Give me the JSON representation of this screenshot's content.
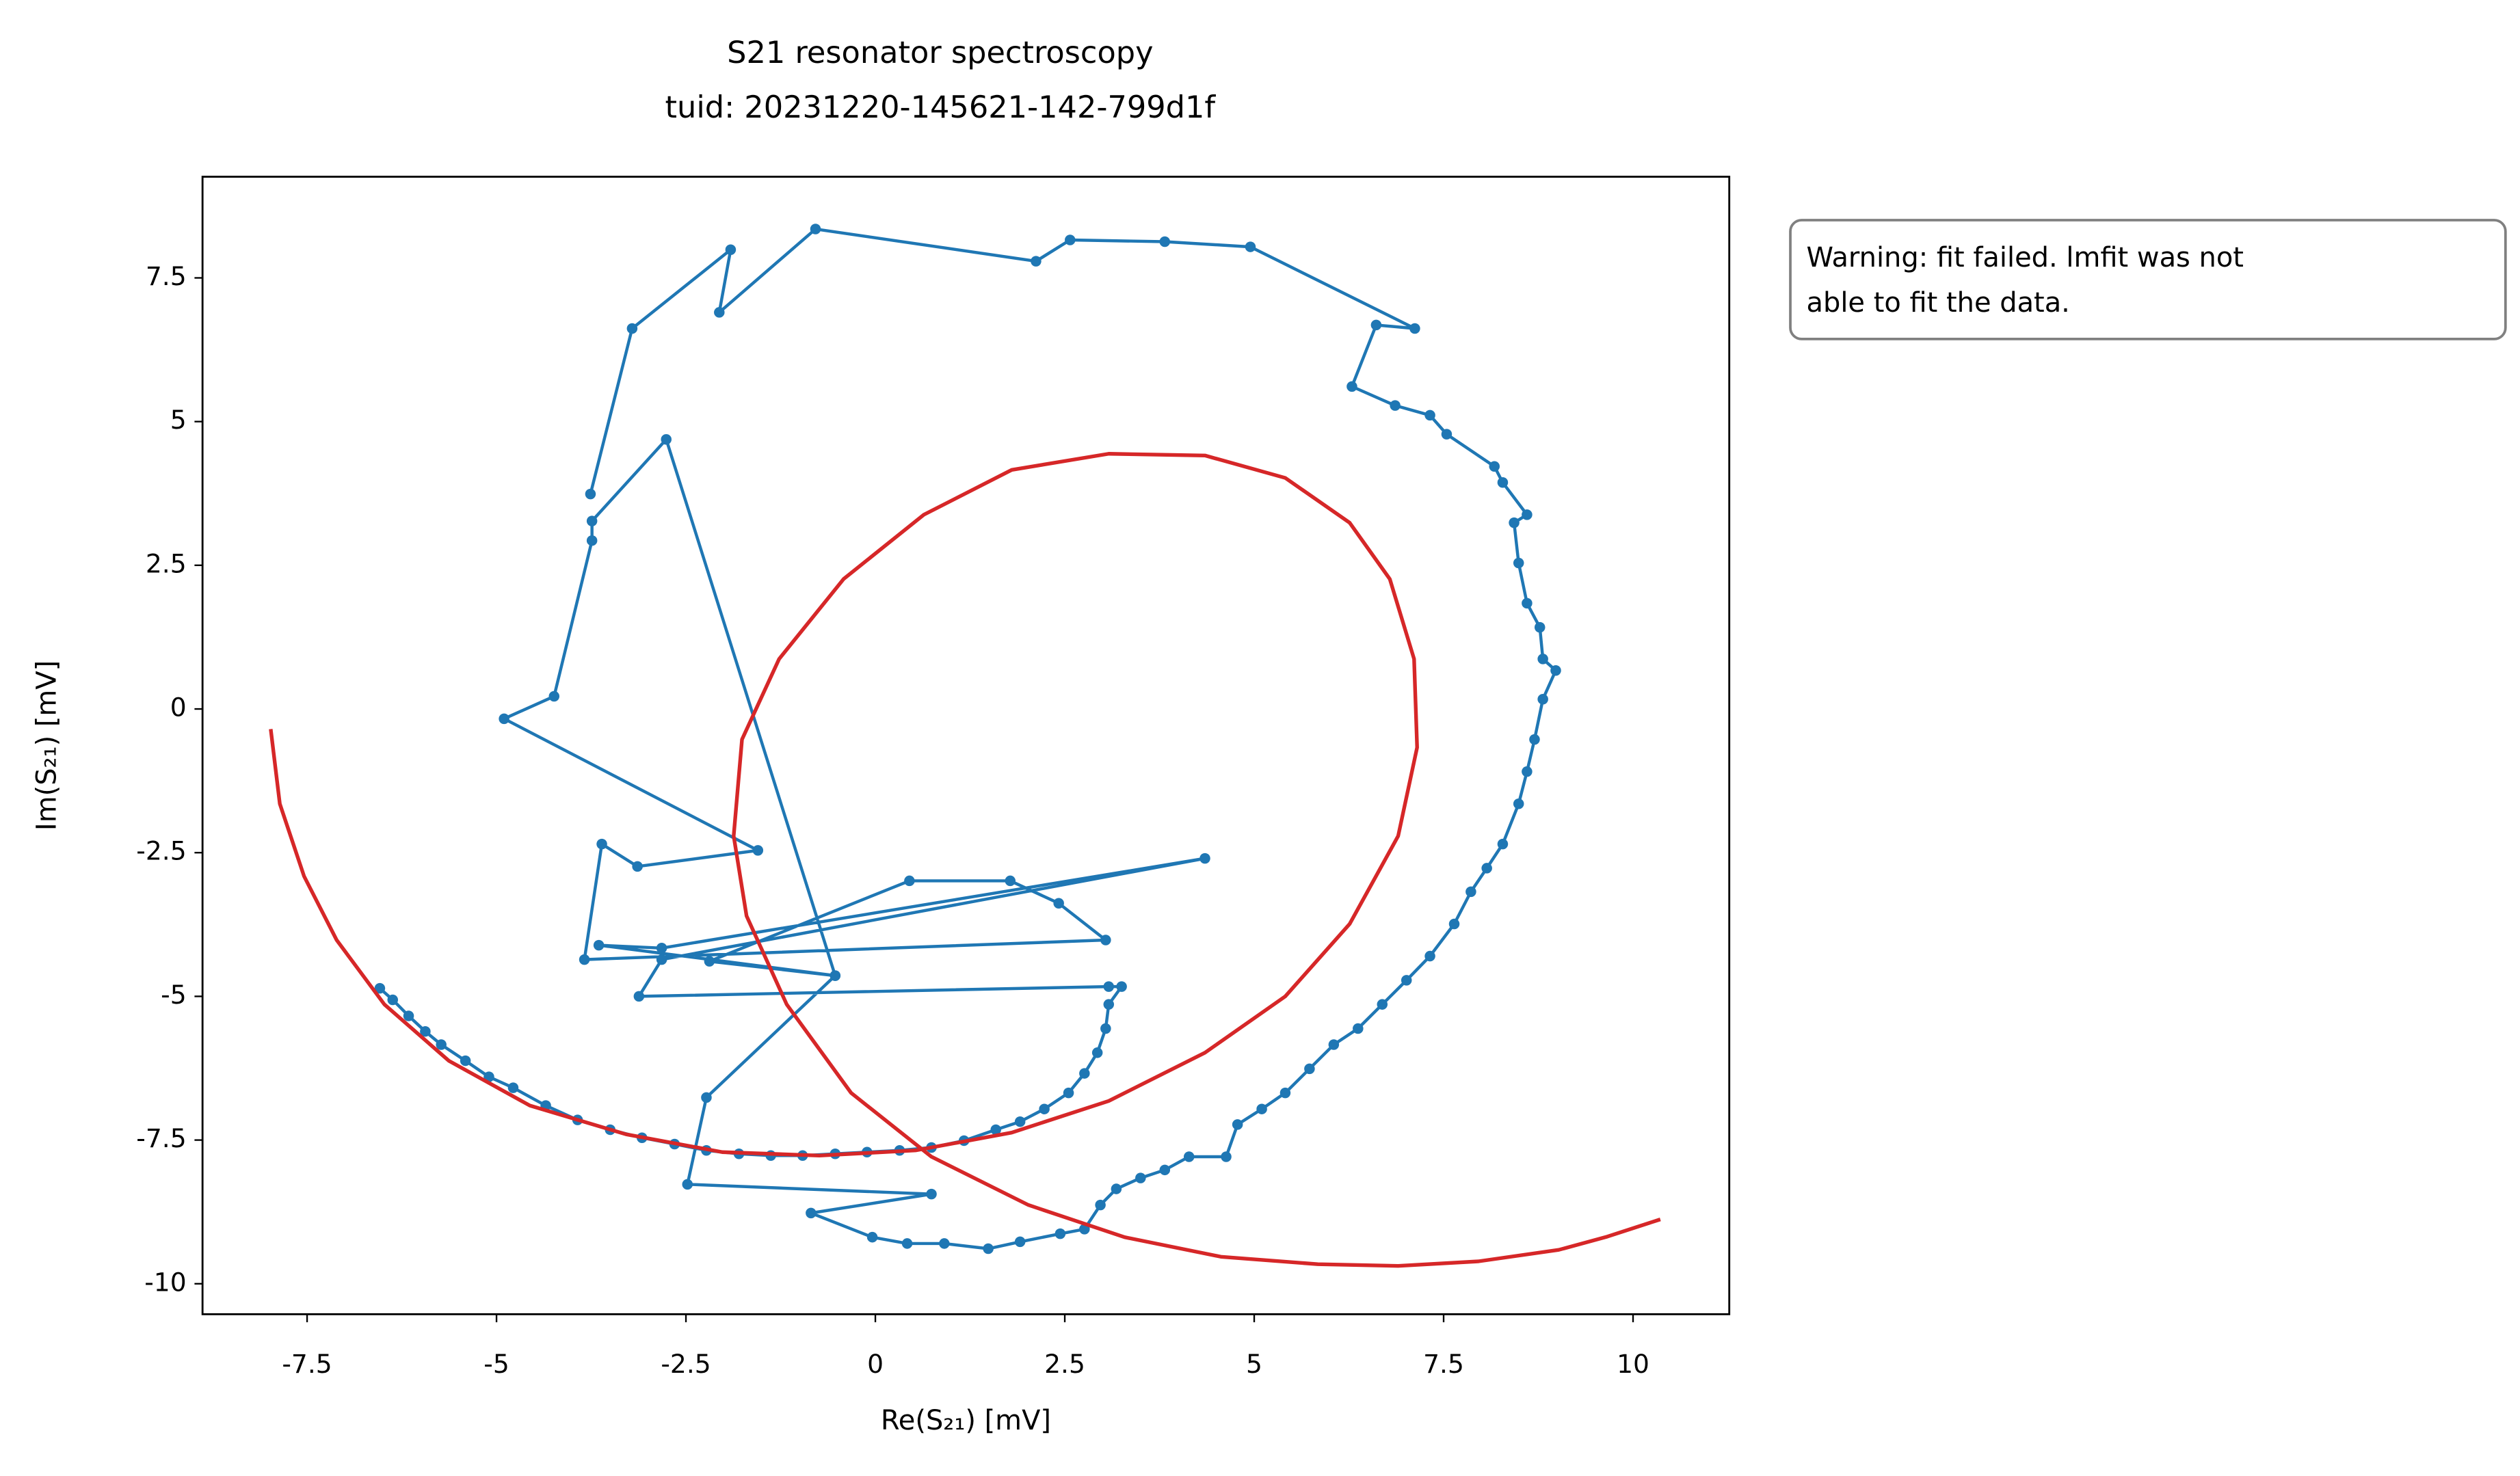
{
  "chart_data": {
    "type": "line",
    "title": "S21 resonator spectroscopy",
    "subtitle": "tuid: 20231220-145621-142-799d1f",
    "x_label": "Re(S₂₁) [mV]",
    "y_label": "Im(S₂₁) [mV]",
    "annotation": [
      "Warning: fit failed. lmfit was not",
      "able to fit the data."
    ],
    "xlim": [
      -8.88,
      11.27
    ],
    "ylim": [
      -10.53,
      9.26
    ],
    "xticks": [
      -7.5,
      -5,
      -2.5,
      0,
      2.5,
      5,
      7.5,
      10
    ],
    "yticks": [
      7.5,
      5,
      2.5,
      0,
      -2.5,
      -5,
      -7.5,
      -10
    ],
    "grid": false,
    "series": [
      {
        "color": "#1f77b4",
        "marker": true,
        "x": [
          -6.54,
          -6.37,
          -6.16,
          -5.94,
          -5.73,
          -5.41,
          -5.1,
          -4.78,
          -4.35,
          -3.93,
          -3.5,
          -3.08,
          -2.65,
          -2.23,
          -1.8,
          -1.38,
          -0.96,
          -0.53,
          -0.11,
          0.32,
          0.74,
          1.17,
          1.59,
          1.91,
          2.23,
          2.55,
          2.76,
          2.93,
          3.04,
          3.08,
          3.25,
          3.08,
          -3.12,
          -2.82,
          4.35,
          -2.82,
          -3.65,
          -0.53,
          -2.19,
          0.45,
          1.78,
          2.42,
          3.04,
          -3.84,
          -3.61,
          -3.14,
          -1.55,
          -4.9,
          -4.24,
          -3.74,
          -3.74,
          -2.76,
          -0.53,
          -2.23,
          -2.48,
          0.74,
          -0.85,
          -0.04,
          0.42,
          0.91,
          1.49,
          1.91,
          2.44,
          2.76,
          2.97,
          3.18,
          3.5,
          3.82,
          4.14,
          4.63,
          4.78,
          5.1,
          5.41,
          5.73,
          6.05,
          6.37,
          6.69,
          7.01,
          7.32,
          7.64,
          7.86,
          8.07,
          8.28,
          8.49,
          8.6,
          8.7,
          8.81,
          8.98,
          8.81,
          8.77,
          8.6,
          8.49,
          8.43,
          8.6,
          8.28,
          8.17,
          7.54,
          7.32,
          6.86,
          6.29,
          6.61,
          7.12,
          4.95,
          3.82,
          2.57,
          2.12,
          -0.79,
          -2.06,
          -1.91,
          -3.21,
          -3.76
        ],
        "values": [
          -4.86,
          -5.06,
          -5.34,
          -5.61,
          -5.84,
          -6.12,
          -6.4,
          -6.59,
          -6.9,
          -7.15,
          -7.32,
          -7.46,
          -7.57,
          -7.68,
          -7.74,
          -7.77,
          -7.77,
          -7.74,
          -7.71,
          -7.68,
          -7.63,
          -7.51,
          -7.32,
          -7.18,
          -6.96,
          -6.68,
          -6.34,
          -5.98,
          -5.56,
          -5.14,
          -4.83,
          -4.83,
          -5.0,
          -4.36,
          -2.6,
          -4.16,
          -4.11,
          -4.64,
          -4.39,
          -2.99,
          -2.99,
          -3.38,
          -4.02,
          -4.36,
          -2.35,
          -2.74,
          -2.46,
          -0.17,
          0.22,
          2.93,
          3.27,
          4.69,
          -4.64,
          -6.76,
          -8.27,
          -8.44,
          -8.77,
          -9.19,
          -9.3,
          -9.3,
          -9.39,
          -9.27,
          -9.13,
          -9.05,
          -8.63,
          -8.35,
          -8.16,
          -8.02,
          -7.79,
          -7.79,
          -7.23,
          -6.96,
          -6.68,
          -6.26,
          -5.84,
          -5.56,
          -5.14,
          -4.72,
          -4.3,
          -3.74,
          -3.18,
          -2.77,
          -2.35,
          -1.65,
          -1.09,
          -0.53,
          0.17,
          0.67,
          0.87,
          1.42,
          1.84,
          2.54,
          3.24,
          3.38,
          3.94,
          4.22,
          4.78,
          5.11,
          5.28,
          5.61,
          6.68,
          6.62,
          8.04,
          8.13,
          8.16,
          7.79,
          8.35,
          6.9,
          7.99,
          6.62,
          3.74
        ]
      },
      {
        "color": "#d62728",
        "marker": false,
        "x": [
          -7.98,
          -7.86,
          -7.54,
          -7.11,
          -6.48,
          -5.63,
          -4.56,
          -3.29,
          -2.02,
          -0.74,
          0.53,
          1.8,
          3.08,
          4.35,
          5.41,
          6.26,
          6.9,
          7.15,
          7.11,
          6.79,
          6.26,
          5.41,
          4.35,
          3.08,
          1.8,
          0.64,
          -0.42,
          -1.27,
          -1.76,
          -1.87,
          -1.7,
          -1.17,
          -0.32,
          0.74,
          2.02,
          3.29,
          4.56,
          5.84,
          6.9,
          7.96,
          9.02,
          9.66,
          10.36
        ],
        "values": [
          -0.35,
          -1.65,
          -2.91,
          -4.02,
          -5.14,
          -6.12,
          -6.9,
          -7.4,
          -7.71,
          -7.77,
          -7.68,
          -7.37,
          -6.82,
          -5.98,
          -5.0,
          -3.74,
          -2.21,
          -0.67,
          0.87,
          2.26,
          3.24,
          4.02,
          4.41,
          4.44,
          4.16,
          3.38,
          2.26,
          0.87,
          -0.53,
          -2.21,
          -3.6,
          -5.14,
          -6.68,
          -7.79,
          -8.63,
          -9.19,
          -9.53,
          -9.66,
          -9.69,
          -9.61,
          -9.41,
          -9.18,
          -8.88
        ]
      }
    ]
  }
}
